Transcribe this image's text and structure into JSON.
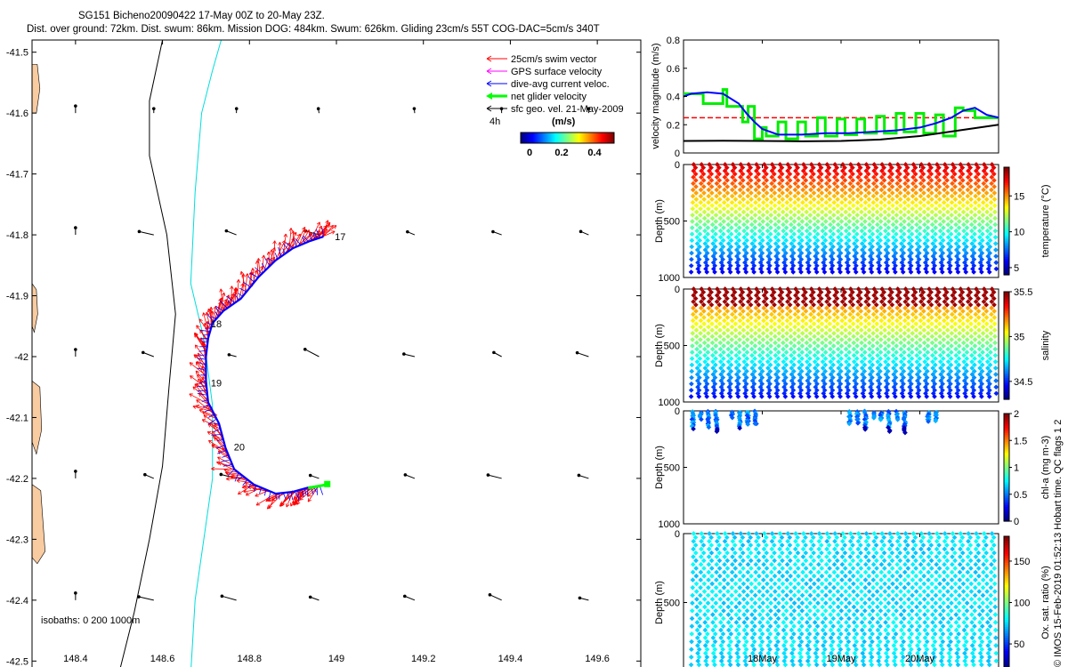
{
  "title": {
    "line1": "SG151 Bicheno20090422 17-May 00Z to 20-May 23Z.",
    "line2": "Dist. over ground: 72km. Dist. swum: 86km. Mission DOG: 484km. Swum: 626km. Gliding 23cm/s 55T COG-DAC=5cm/s 340T"
  },
  "credit": "© IMOS 15-Feb-2019 01:52:13 Hobart time. QC flags 1  2",
  "colors": {
    "swim": "#ff0000",
    "gps": "#ff00ff",
    "dac": "#0000ff",
    "net": "#00ff00",
    "geo": "#000000",
    "land": "#f8cba0",
    "isobath200": "#00dddd"
  },
  "chart_data": [
    {
      "type": "map-quiver",
      "xlim": [
        148.3,
        149.7
      ],
      "ylim": [
        -42.52,
        -41.48
      ],
      "xticks": [
        148.4,
        148.6,
        148.8,
        149,
        149.2,
        149.4,
        149.6
      ],
      "xtick_labels": [
        "148.4",
        "148.6",
        "148.8",
        "149",
        "149.2",
        "149.4",
        "149.6"
      ],
      "yticks": [
        -41.5,
        -41.6,
        -41.7,
        -41.8,
        -41.9,
        -42,
        -42.1,
        -42.2,
        -42.3,
        -42.4,
        -42.5
      ],
      "ytick_labels": [
        "-41.5",
        "-41.6",
        "-41.7",
        "-41.8",
        "-41.9",
        "-42",
        "-42.1",
        "-42.2",
        "-42.3",
        "-42.4",
        "-42.5"
      ],
      "legend": {
        "entries": [
          "25cm/s swim vector",
          "GPS surface velocity",
          "dive-avg current veloc.",
          "net glider velocity",
          "sfc geo. vel. 21-May-2009"
        ],
        "label_4h": "4h",
        "colorbar_title": "(m/s)",
        "colorbar_ticks": [
          "0",
          "0.2",
          "0.4"
        ]
      },
      "isobath_label": "isobaths: 0   200   1000m",
      "day_labels": [
        {
          "text": "17",
          "lon": 148.99,
          "lat": -41.803
        },
        {
          "text": "18",
          "lon": 148.705,
          "lat": -41.946
        },
        {
          "text": "19",
          "lon": 148.705,
          "lat": -42.043
        },
        {
          "text": "20",
          "lon": 148.758,
          "lat": -42.148
        }
      ],
      "track": [
        [
          148.97,
          -41.803
        ],
        [
          148.94,
          -41.81
        ],
        [
          148.9,
          -41.822
        ],
        [
          148.86,
          -41.842
        ],
        [
          148.82,
          -41.87
        ],
        [
          148.78,
          -41.905
        ],
        [
          148.74,
          -41.925
        ],
        [
          148.715,
          -41.945
        ],
        [
          148.705,
          -41.97
        ],
        [
          148.7,
          -42.0
        ],
        [
          148.7,
          -42.04
        ],
        [
          148.705,
          -42.075
        ],
        [
          148.73,
          -42.11
        ],
        [
          148.745,
          -42.15
        ],
        [
          148.765,
          -42.185
        ],
        [
          148.81,
          -42.21
        ],
        [
          148.86,
          -42.225
        ],
        [
          148.9,
          -42.222
        ],
        [
          148.935,
          -42.215
        ],
        [
          148.965,
          -42.212
        ]
      ],
      "coast_1000m": [
        [
          148.5,
          -42.52
        ],
        [
          148.535,
          -42.42
        ],
        [
          148.57,
          -42.3
        ],
        [
          148.6,
          -42.18
        ],
        [
          148.615,
          -42.05
        ],
        [
          148.63,
          -41.93
        ],
        [
          148.61,
          -41.8
        ],
        [
          148.57,
          -41.67
        ],
        [
          148.57,
          -41.58
        ],
        [
          148.6,
          -41.48
        ]
      ],
      "coast_200m": [
        [
          148.665,
          -42.52
        ],
        [
          148.675,
          -42.4
        ],
        [
          148.695,
          -42.3
        ],
        [
          148.715,
          -42.2
        ],
        [
          148.715,
          -42.08
        ],
        [
          148.695,
          -41.97
        ],
        [
          148.665,
          -41.88
        ],
        [
          148.675,
          -41.73
        ],
        [
          148.69,
          -41.6
        ],
        [
          148.715,
          -41.53
        ],
        [
          148.735,
          -41.48
        ]
      ],
      "land": [
        [
          [
            148.3,
            -41.52
          ],
          [
            148.312,
            -41.52
          ],
          [
            148.318,
            -41.56
          ],
          [
            148.31,
            -41.6
          ],
          [
            148.3,
            -41.6
          ]
        ],
        [
          [
            148.3,
            -41.88
          ],
          [
            148.31,
            -41.89
          ],
          [
            148.313,
            -41.93
          ],
          [
            148.305,
            -41.96
          ],
          [
            148.3,
            -41.95
          ]
        ],
        [
          [
            148.3,
            -42.04
          ],
          [
            148.318,
            -42.05
          ],
          [
            148.322,
            -42.12
          ],
          [
            148.31,
            -42.16
          ],
          [
            148.3,
            -42.14
          ]
        ],
        [
          [
            148.3,
            -42.21
          ],
          [
            148.32,
            -42.22
          ],
          [
            148.325,
            -42.27
          ],
          [
            148.33,
            -42.32
          ],
          [
            148.312,
            -42.34
          ],
          [
            148.3,
            -42.33
          ]
        ]
      ],
      "geo_grid": {
        "lons": [
          148.4,
          148.58,
          148.77,
          148.96,
          149.18,
          149.38,
          149.58
        ],
        "lats": [
          -41.6,
          -41.8,
          -42.0,
          -42.2,
          -42.4
        ]
      }
    },
    {
      "type": "line",
      "ylabel": "velocity magnitude (m/s)",
      "ylim": [
        0,
        0.8
      ],
      "yticks": [
        0,
        0.2,
        0.4,
        0.6,
        0.8
      ],
      "xlim": [
        0,
        4
      ],
      "series_colors": [
        "#ff0000",
        "#00ee00",
        "#0000ff",
        "#000000"
      ],
      "series": [
        {
          "values_x": [
            0,
            4
          ],
          "values": [
            0.25,
            0.25
          ]
        },
        {
          "values_x": [
            0,
            0.25,
            0.25,
            0.5,
            0.5,
            0.55,
            0.55,
            0.75,
            0.75,
            0.82,
            0.82,
            0.9,
            0.9,
            1.0,
            1.0,
            1.05,
            1.05,
            1.2,
            1.2,
            1.3,
            1.3,
            1.45,
            1.45,
            1.55,
            1.55,
            1.7,
            1.7,
            1.8,
            1.8,
            1.95,
            1.95,
            2.05,
            2.05,
            2.2,
            2.2,
            2.3,
            2.3,
            2.45,
            2.45,
            2.55,
            2.55,
            2.7,
            2.7,
            2.8,
            2.8,
            2.95,
            2.95,
            3.05,
            3.05,
            3.2,
            3.2,
            3.3,
            3.3,
            3.45,
            3.45,
            3.55,
            3.55,
            3.7,
            3.7,
            3.85,
            3.85,
            4.0
          ],
          "values": [
            0.42,
            0.42,
            0.35,
            0.35,
            0.45,
            0.45,
            0.33,
            0.33,
            0.22,
            0.22,
            0.33,
            0.33,
            0.1,
            0.1,
            0.18,
            0.18,
            0.12,
            0.12,
            0.22,
            0.22,
            0.1,
            0.1,
            0.22,
            0.22,
            0.12,
            0.12,
            0.25,
            0.25,
            0.12,
            0.12,
            0.24,
            0.24,
            0.13,
            0.13,
            0.24,
            0.24,
            0.14,
            0.14,
            0.26,
            0.26,
            0.14,
            0.14,
            0.28,
            0.28,
            0.15,
            0.15,
            0.28,
            0.28,
            0.14,
            0.14,
            0.27,
            0.27,
            0.12,
            0.12,
            0.32,
            0.32,
            0.3,
            0.3,
            0.25,
            0.25,
            0.25,
            0.25
          ]
        },
        {
          "values_x": [
            0,
            0.1,
            0.3,
            0.5,
            0.7,
            0.8,
            0.9,
            1.0,
            1.2,
            1.5,
            1.8,
            2.1,
            2.4,
            2.7,
            3.0,
            3.2,
            3.4,
            3.55,
            3.7,
            3.85,
            4.0
          ],
          "values": [
            0.4,
            0.42,
            0.43,
            0.42,
            0.35,
            0.28,
            0.22,
            0.17,
            0.13,
            0.13,
            0.14,
            0.14,
            0.15,
            0.16,
            0.18,
            0.21,
            0.25,
            0.3,
            0.32,
            0.27,
            0.25
          ]
        },
        {
          "values_x": [
            0,
            0.5,
            1.0,
            1.5,
            2.0,
            2.5,
            3.0,
            3.5,
            4.0
          ],
          "values": [
            0.085,
            0.087,
            0.085,
            0.083,
            0.085,
            0.095,
            0.12,
            0.16,
            0.2
          ]
        }
      ]
    },
    {
      "type": "scatter",
      "ylabel": "Depth (m)",
      "clabel": "temperature (°C)",
      "ylim": [
        1000,
        0
      ],
      "yticks": [
        0,
        500,
        1000
      ],
      "ytick_labels": [
        "0",
        "500",
        "1000"
      ],
      "clim": [
        4,
        19
      ],
      "cticks": [
        5,
        10,
        15
      ],
      "cmap": "jet",
      "profile_count": 39,
      "max_depth": 1000,
      "min_depth": 0,
      "surface_value": 18,
      "deep_value": 4.5
    },
    {
      "type": "scatter",
      "ylabel": "Depth (m)",
      "clabel": "salinity",
      "ylim": [
        1000,
        0
      ],
      "yticks": [
        0,
        500,
        1000
      ],
      "ytick_labels": [
        "0",
        "500",
        "1000"
      ],
      "clim": [
        34.3,
        35.5
      ],
      "cticks": [
        34.5,
        35,
        35.5
      ],
      "cmap": "jet",
      "profile_count": 39,
      "max_depth": 1000,
      "min_depth": 0,
      "surface_value": 35.5,
      "deep_value": 34.35
    },
    {
      "type": "scatter",
      "ylabel": "Depth (m)",
      "clabel": "chl-a (mg m-3)",
      "ylim": [
        1000,
        0
      ],
      "yticks": [
        0,
        500,
        1000
      ],
      "ytick_labels": [
        "0",
        "500",
        "1000"
      ],
      "clim": [
        0,
        2
      ],
      "cticks": [
        0,
        0.5,
        1,
        1.5,
        2
      ],
      "cticks_labels": [
        "0",
        "0.5",
        "1",
        "1.5",
        "2"
      ],
      "cmap": "jet",
      "active_profiles": [
        0,
        1,
        2,
        3,
        5,
        6,
        7,
        8,
        20,
        21,
        22,
        23,
        24,
        25,
        26,
        27,
        30,
        31
      ]
    },
    {
      "type": "scatter",
      "ylabel": "Depth (m)",
      "clabel": "Ox. sat. ratio (%)",
      "ylim": [
        1000,
        0
      ],
      "yticks": [
        0,
        500,
        1000
      ],
      "ytick_labels": [
        "0",
        "500",
        "1000"
      ],
      "clim": [
        20,
        180
      ],
      "cticks": [
        50,
        100,
        150
      ],
      "cmap": "jet",
      "profile_count": 39,
      "max_depth": 1000,
      "min_depth": 0,
      "surface_value": 70,
      "deep_value": 65,
      "xlim": [
        0,
        4
      ],
      "xtick_labels": [
        "18May",
        "19May",
        "20May"
      ],
      "xticks": [
        1,
        2,
        3
      ]
    }
  ]
}
